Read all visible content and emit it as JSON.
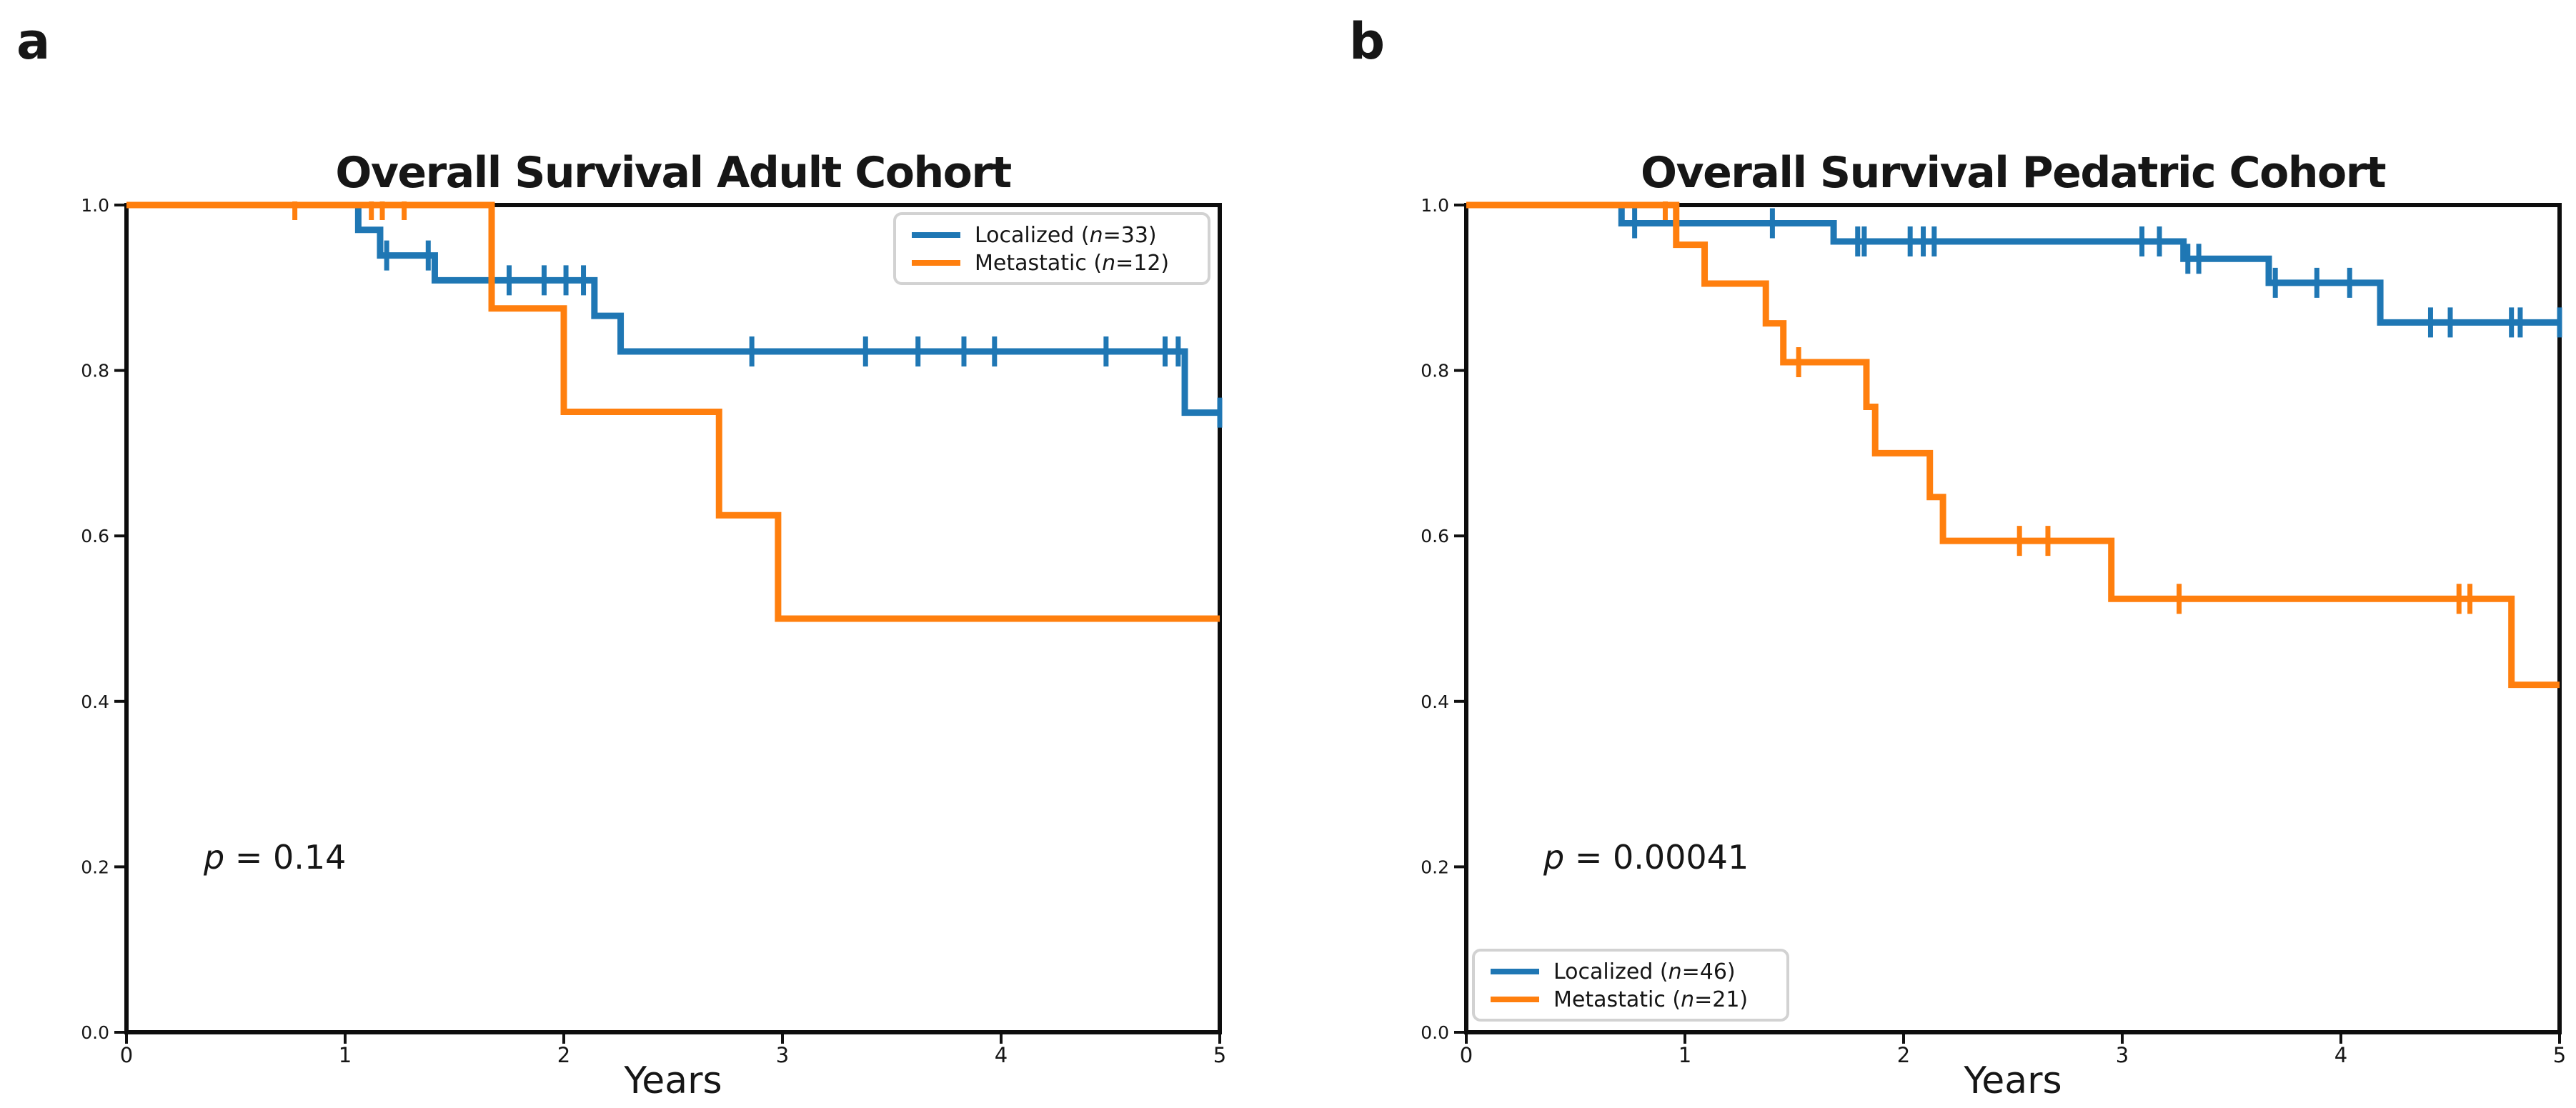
{
  "figure": {
    "background": "#ffffff",
    "text_color": "#161616",
    "frame_color": "#0d0d0d"
  },
  "chart_data": [
    {
      "panel_letter": "a",
      "type": "km_step",
      "title": "Overall Survival Adult Cohort",
      "xlabel": "Years",
      "xlim": [
        0,
        5
      ],
      "ylim": [
        0.0,
        1.0
      ],
      "xticks": [
        "0",
        "1",
        "2",
        "3",
        "4",
        "5"
      ],
      "yticks": [
        "0.0",
        "0.2",
        "0.4",
        "0.6",
        "0.8",
        "1.0"
      ],
      "p_label": "p = 0.14",
      "legend": {
        "loc": "upper-right"
      },
      "grid": false,
      "series": [
        {
          "name": "Localized (n=33)",
          "color": "#1f77b4",
          "steps": [
            [
              0,
              1.0
            ],
            [
              1.06,
              0.97
            ],
            [
              1.16,
              0.939
            ],
            [
              1.41,
              0.909
            ],
            [
              2.14,
              0.866
            ],
            [
              2.26,
              0.823
            ],
            [
              4.84,
              0.749
            ],
            [
              5.0,
              0.749
            ]
          ],
          "censors": [
            [
              1.19,
              0.939
            ],
            [
              1.38,
              0.939
            ],
            [
              1.75,
              0.909
            ],
            [
              1.91,
              0.909
            ],
            [
              2.01,
              0.909
            ],
            [
              2.09,
              0.909
            ],
            [
              2.86,
              0.823
            ],
            [
              3.38,
              0.823
            ],
            [
              3.62,
              0.823
            ],
            [
              3.83,
              0.823
            ],
            [
              3.97,
              0.823
            ],
            [
              4.48,
              0.823
            ],
            [
              4.75,
              0.823
            ],
            [
              4.81,
              0.823
            ],
            [
              5.0,
              0.749
            ]
          ]
        },
        {
          "name": "Metastatic (n=12)",
          "color": "#ff7f0e",
          "steps": [
            [
              0,
              1.0
            ],
            [
              1.67,
              0.875
            ],
            [
              2.0,
              0.75
            ],
            [
              2.71,
              0.625
            ],
            [
              2.98,
              0.5
            ],
            [
              5.0,
              0.5
            ]
          ],
          "censors": [
            [
              0.77,
              1.0
            ],
            [
              1.12,
              1.0
            ],
            [
              1.17,
              1.0
            ],
            [
              1.27,
              1.0
            ]
          ]
        }
      ]
    },
    {
      "panel_letter": "b",
      "type": "km_step",
      "title": "Overall Survival Pedatric Cohort",
      "xlabel": "Years",
      "xlim": [
        0,
        5
      ],
      "ylim": [
        0.0,
        1.0
      ],
      "xticks": [
        "0",
        "1",
        "2",
        "3",
        "4",
        "5"
      ],
      "yticks": [
        "0.0",
        "0.2",
        "0.4",
        "0.6",
        "0.8",
        "1.0"
      ],
      "p_label": "p = 0.00041",
      "legend": {
        "loc": "lower-left"
      },
      "grid": false,
      "series": [
        {
          "name": "Localized (n=46)",
          "color": "#1f77b4",
          "steps": [
            [
              0,
              1.0
            ],
            [
              0.71,
              0.978
            ],
            [
              1.68,
              0.956
            ],
            [
              3.28,
              0.935
            ],
            [
              3.67,
              0.906
            ],
            [
              4.18,
              0.858
            ],
            [
              5.0,
              0.858
            ]
          ],
          "censors": [
            [
              0.77,
              0.978
            ],
            [
              1.4,
              0.978
            ],
            [
              1.79,
              0.956
            ],
            [
              1.82,
              0.956
            ],
            [
              2.03,
              0.956
            ],
            [
              2.09,
              0.956
            ],
            [
              2.14,
              0.956
            ],
            [
              3.09,
              0.956
            ],
            [
              3.17,
              0.956
            ],
            [
              3.3,
              0.935
            ],
            [
              3.35,
              0.935
            ],
            [
              3.7,
              0.906
            ],
            [
              3.89,
              0.906
            ],
            [
              4.04,
              0.906
            ],
            [
              4.41,
              0.858
            ],
            [
              4.5,
              0.858
            ],
            [
              4.78,
              0.858
            ],
            [
              4.82,
              0.858
            ],
            [
              5.0,
              0.858
            ]
          ]
        },
        {
          "name": "Metastatic (n=21)",
          "color": "#ff7f0e",
          "steps": [
            [
              0,
              1.0
            ],
            [
              0.96,
              0.952
            ],
            [
              1.09,
              0.905
            ],
            [
              1.37,
              0.857
            ],
            [
              1.45,
              0.81
            ],
            [
              1.83,
              0.756
            ],
            [
              1.87,
              0.7
            ],
            [
              2.12,
              0.647
            ],
            [
              2.18,
              0.594
            ],
            [
              2.95,
              0.524
            ],
            [
              4.78,
              0.42
            ],
            [
              5.0,
              0.42
            ]
          ],
          "censors": [
            [
              0.91,
              1.0
            ],
            [
              1.52,
              0.81
            ],
            [
              2.53,
              0.594
            ],
            [
              2.66,
              0.594
            ],
            [
              3.26,
              0.524
            ],
            [
              4.54,
              0.524
            ],
            [
              4.59,
              0.524
            ]
          ]
        }
      ]
    }
  ]
}
